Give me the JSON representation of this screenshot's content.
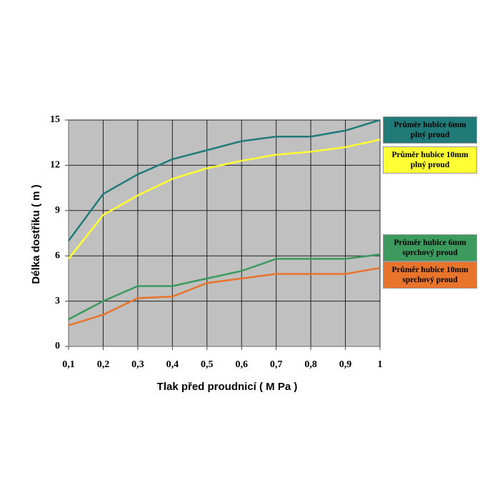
{
  "chart_data": {
    "type": "line",
    "x": [
      0.1,
      0.2,
      0.3,
      0.4,
      0.5,
      0.6,
      0.7,
      0.8,
      0.9,
      1
    ],
    "xlim": [
      0.1,
      1
    ],
    "xticks": [
      {
        "value": 0.1,
        "label": "0,1"
      },
      {
        "value": 0.2,
        "label": "0,2"
      },
      {
        "value": 0.3,
        "label": "0,3"
      },
      {
        "value": 0.4,
        "label": "0,4"
      },
      {
        "value": 0.5,
        "label": "0,5"
      },
      {
        "value": 0.6,
        "label": "0,6"
      },
      {
        "value": 0.7,
        "label": "0,7"
      },
      {
        "value": 0.8,
        "label": "0,8"
      },
      {
        "value": 0.9,
        "label": "0,9"
      },
      1
    ],
    "ylim": [
      0,
      15
    ],
    "yticks": [
      0,
      3,
      6,
      9,
      12,
      15
    ],
    "grid": true,
    "x_label": "Tlak před proudnicí  ( M Pa )",
    "y_label": "Délka dostřiku ( m )",
    "series": [
      {
        "name": "Průměr hubice 6mm plný proud",
        "color": "#1f7a78",
        "values": [
          7.0,
          10.1,
          11.4,
          12.4,
          13.0,
          13.6,
          13.9,
          13.9,
          14.3,
          15.0
        ]
      },
      {
        "name": "Průměr hubice 10mm plný proud",
        "color": "#ffff33",
        "values": [
          5.8,
          8.7,
          10.0,
          11.1,
          11.8,
          12.3,
          12.7,
          12.9,
          13.2,
          13.7
        ]
      },
      {
        "name": "Průměr hubice 6mm sprchový proud",
        "color": "#3c9a5f",
        "values": [
          1.8,
          3.0,
          4.0,
          4.0,
          4.5,
          5.0,
          5.8,
          5.8,
          5.8,
          6.1
        ]
      },
      {
        "name": "Průměr hubice 10mm sprchový proud",
        "color": "#e8732a",
        "values": [
          1.4,
          2.1,
          3.2,
          3.3,
          4.2,
          4.5,
          4.8,
          4.8,
          4.8,
          5.2
        ]
      }
    ]
  }
}
